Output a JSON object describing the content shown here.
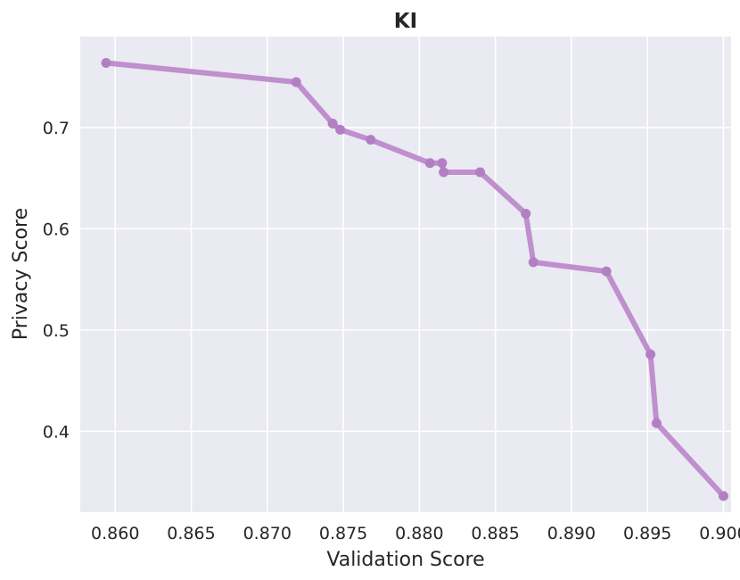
{
  "chart_data": {
    "type": "line",
    "title": "KI",
    "xlabel": "Validation Score",
    "ylabel": "Privacy Score",
    "xlim": [
      0.8577,
      0.9005
    ],
    "ylim": [
      0.32,
      0.79
    ],
    "xticks": [
      0.86,
      0.865,
      0.87,
      0.875,
      0.88,
      0.885,
      0.89,
      0.895,
      0.9
    ],
    "xtick_labels": [
      "0.860",
      "0.865",
      "0.870",
      "0.875",
      "0.880",
      "0.885",
      "0.890",
      "0.895",
      "0.900"
    ],
    "yticks": [
      0.4,
      0.5,
      0.6,
      0.7
    ],
    "ytick_labels": [
      "0.4",
      "0.5",
      "0.6",
      "0.7"
    ],
    "grid": true,
    "series": [
      {
        "color": "#bf8fce",
        "x": [
          0.8594,
          0.8719,
          0.8743,
          0.8748,
          0.8768,
          0.8807,
          0.8815,
          0.8816,
          0.884,
          0.887,
          0.8875,
          0.8923,
          0.8952,
          0.8956,
          0.9
        ],
        "y": [
          0.764,
          0.745,
          0.704,
          0.698,
          0.688,
          0.665,
          0.665,
          0.656,
          0.656,
          0.615,
          0.567,
          0.558,
          0.476,
          0.408,
          0.336
        ]
      }
    ]
  },
  "colors": {
    "plot_background": "#eaeaf2",
    "grid": "#ffffff"
  }
}
